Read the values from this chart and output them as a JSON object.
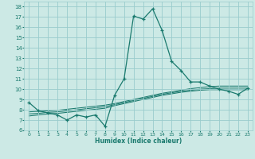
{
  "xlabel": "Humidex (Indice chaleur)",
  "xlim": [
    -0.5,
    23.5
  ],
  "ylim": [
    6,
    18.5
  ],
  "yticks": [
    6,
    7,
    8,
    9,
    10,
    11,
    12,
    13,
    14,
    15,
    16,
    17,
    18
  ],
  "xticks": [
    0,
    1,
    2,
    3,
    4,
    5,
    6,
    7,
    8,
    9,
    10,
    11,
    12,
    13,
    14,
    15,
    16,
    17,
    18,
    19,
    20,
    21,
    22,
    23
  ],
  "bg_color": "#cce9e5",
  "grid_color": "#99cccc",
  "line_color": "#1a7a6e",
  "series": [
    {
      "x": [
        0,
        1,
        2,
        3,
        4,
        5,
        6,
        7,
        8,
        9,
        10,
        11,
        12,
        13,
        14,
        15,
        16,
        17,
        18,
        19,
        20,
        21,
        22,
        23
      ],
      "y": [
        8.7,
        7.9,
        7.7,
        7.5,
        7.0,
        7.5,
        7.3,
        7.5,
        6.4,
        9.4,
        11.0,
        17.1,
        16.8,
        17.8,
        15.7,
        12.7,
        11.8,
        10.7,
        10.7,
        10.3,
        10.0,
        9.8,
        9.5,
        10.1
      ],
      "marker": true
    },
    {
      "x": [
        0,
        1,
        2,
        3,
        4,
        5,
        6,
        7,
        8,
        9,
        10,
        11,
        12,
        13,
        14,
        15,
        16,
        17,
        18,
        19,
        20,
        21,
        22,
        23
      ],
      "y": [
        7.8,
        7.85,
        7.9,
        7.95,
        8.05,
        8.15,
        8.25,
        8.35,
        8.45,
        8.6,
        8.8,
        9.0,
        9.2,
        9.4,
        9.6,
        9.75,
        9.9,
        10.05,
        10.15,
        10.25,
        10.3,
        10.3,
        10.3,
        10.3
      ],
      "marker": false
    },
    {
      "x": [
        0,
        1,
        2,
        3,
        4,
        5,
        6,
        7,
        8,
        9,
        10,
        11,
        12,
        13,
        14,
        15,
        16,
        17,
        18,
        19,
        20,
        21,
        22,
        23
      ],
      "y": [
        7.6,
        7.65,
        7.75,
        7.8,
        7.9,
        8.0,
        8.1,
        8.2,
        8.3,
        8.5,
        8.7,
        8.9,
        9.1,
        9.3,
        9.5,
        9.65,
        9.8,
        9.9,
        10.0,
        10.05,
        10.1,
        10.1,
        10.1,
        10.1
      ],
      "marker": false
    },
    {
      "x": [
        0,
        1,
        2,
        3,
        4,
        5,
        6,
        7,
        8,
        9,
        10,
        11,
        12,
        13,
        14,
        15,
        16,
        17,
        18,
        19,
        20,
        21,
        22,
        23
      ],
      "y": [
        7.4,
        7.5,
        7.6,
        7.65,
        7.75,
        7.85,
        7.95,
        8.05,
        8.15,
        8.4,
        8.6,
        8.8,
        9.0,
        9.2,
        9.4,
        9.55,
        9.7,
        9.8,
        9.9,
        9.95,
        9.95,
        9.95,
        9.95,
        9.95
      ],
      "marker": false
    }
  ]
}
